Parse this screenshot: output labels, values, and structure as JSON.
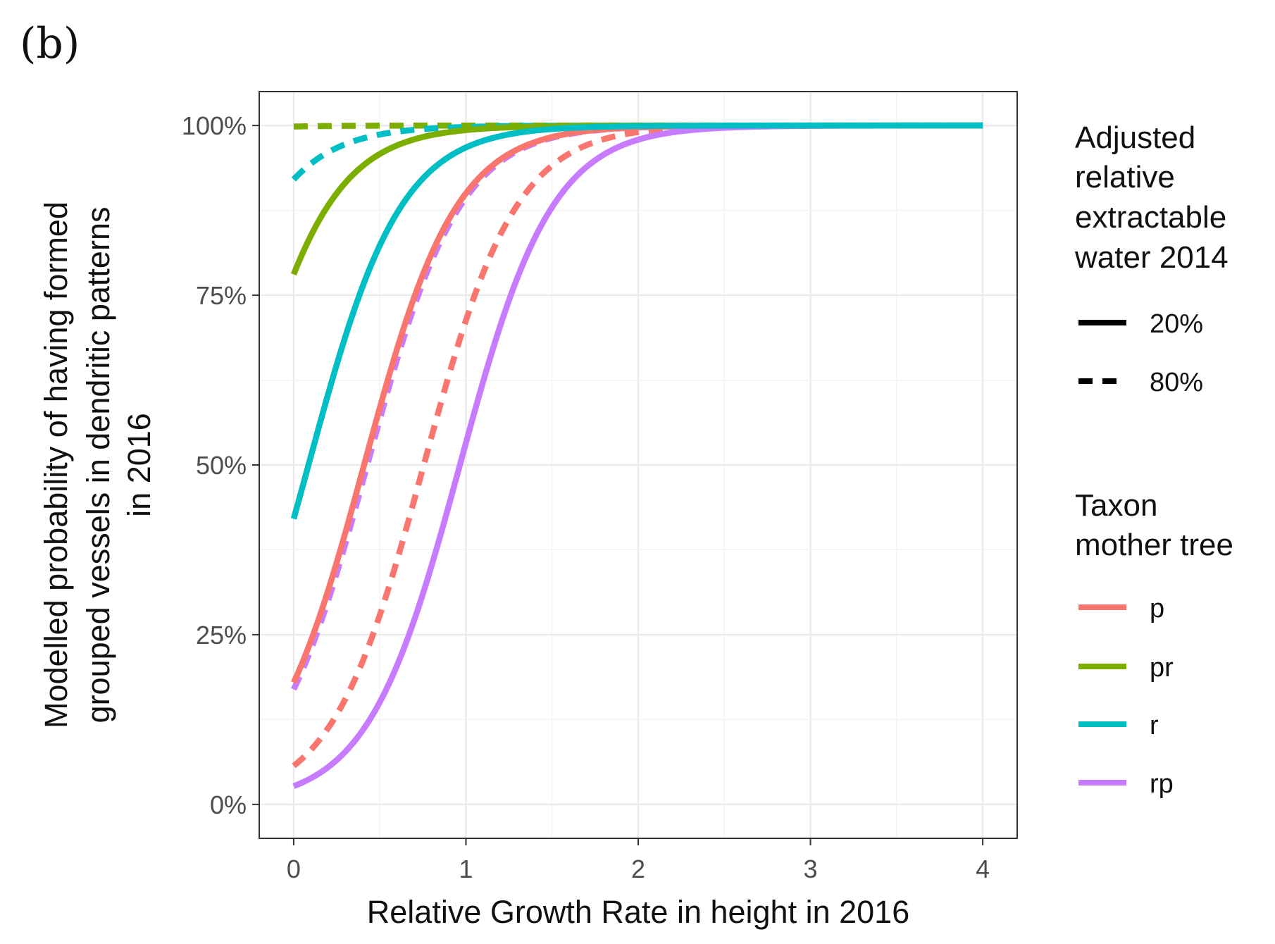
{
  "panel_label": "(b)",
  "chart_data": {
    "type": "line",
    "xlabel": "Relative Growth Rate in height in 2016",
    "ylabel_lines": [
      "Modelled probability of having formed",
      "grouped vessels in dendritic patterns",
      "in 2016"
    ],
    "xlim": [
      -0.2,
      4.2
    ],
    "ylim": [
      -0.05,
      1.05
    ],
    "x_ticks": [
      0,
      1,
      2,
      3,
      4
    ],
    "x_tick_labels": [
      "0",
      "1",
      "2",
      "3",
      "4"
    ],
    "y_ticks": [
      0,
      0.25,
      0.5,
      0.75,
      1.0
    ],
    "y_tick_labels": [
      "0%",
      "25%",
      "50%",
      "75%",
      "100%"
    ],
    "grid": true,
    "x_domain": [
      0,
      4
    ],
    "legend_linetype": {
      "title_lines": [
        "Adjusted",
        "relative",
        "extractable",
        "water 2014"
      ],
      "entries": [
        {
          "label": "20%",
          "linetype": "solid"
        },
        {
          "label": "80%",
          "linetype": "dashed"
        }
      ]
    },
    "legend_color": {
      "title_lines": [
        "Taxon",
        "mother tree"
      ],
      "entries": [
        {
          "label": "p",
          "color": "#f8766d"
        },
        {
          "label": "pr",
          "color": "#7cae00"
        },
        {
          "label": "r",
          "color": "#00bfc4"
        },
        {
          "label": "rp",
          "color": "#c77cff"
        }
      ]
    },
    "series": [
      {
        "name": "p 20%",
        "taxon": "p",
        "water": "20%",
        "linetype": "solid",
        "color": "#f8766d",
        "intercept": -1.52,
        "slope": 3.72
      },
      {
        "name": "p 80%",
        "taxon": "p",
        "water": "80%",
        "linetype": "dashed",
        "color": "#f8766d",
        "intercept": -2.81,
        "slope": 3.72
      },
      {
        "name": "pr 20%",
        "taxon": "pr",
        "water": "20%",
        "linetype": "solid",
        "color": "#7cae00",
        "intercept": 1.27,
        "slope": 3.72
      },
      {
        "name": "pr 80%",
        "taxon": "pr",
        "water": "80%",
        "linetype": "dashed",
        "color": "#7cae00",
        "intercept": 6.5,
        "slope": 3.72
      },
      {
        "name": "r 20%",
        "taxon": "r",
        "water": "20%",
        "linetype": "solid",
        "color": "#00bfc4",
        "intercept": -0.32,
        "slope": 3.72
      },
      {
        "name": "r 80%",
        "taxon": "r",
        "water": "80%",
        "linetype": "dashed",
        "color": "#00bfc4",
        "intercept": 2.45,
        "slope": 3.72
      },
      {
        "name": "rp 20%",
        "taxon": "rp",
        "water": "20%",
        "linetype": "solid",
        "color": "#c77cff",
        "intercept": -3.59,
        "slope": 3.72
      },
      {
        "name": "rp 80%",
        "taxon": "rp",
        "water": "80%",
        "linetype": "dashed",
        "color": "#c77cff",
        "intercept": -1.59,
        "slope": 3.72
      }
    ]
  }
}
